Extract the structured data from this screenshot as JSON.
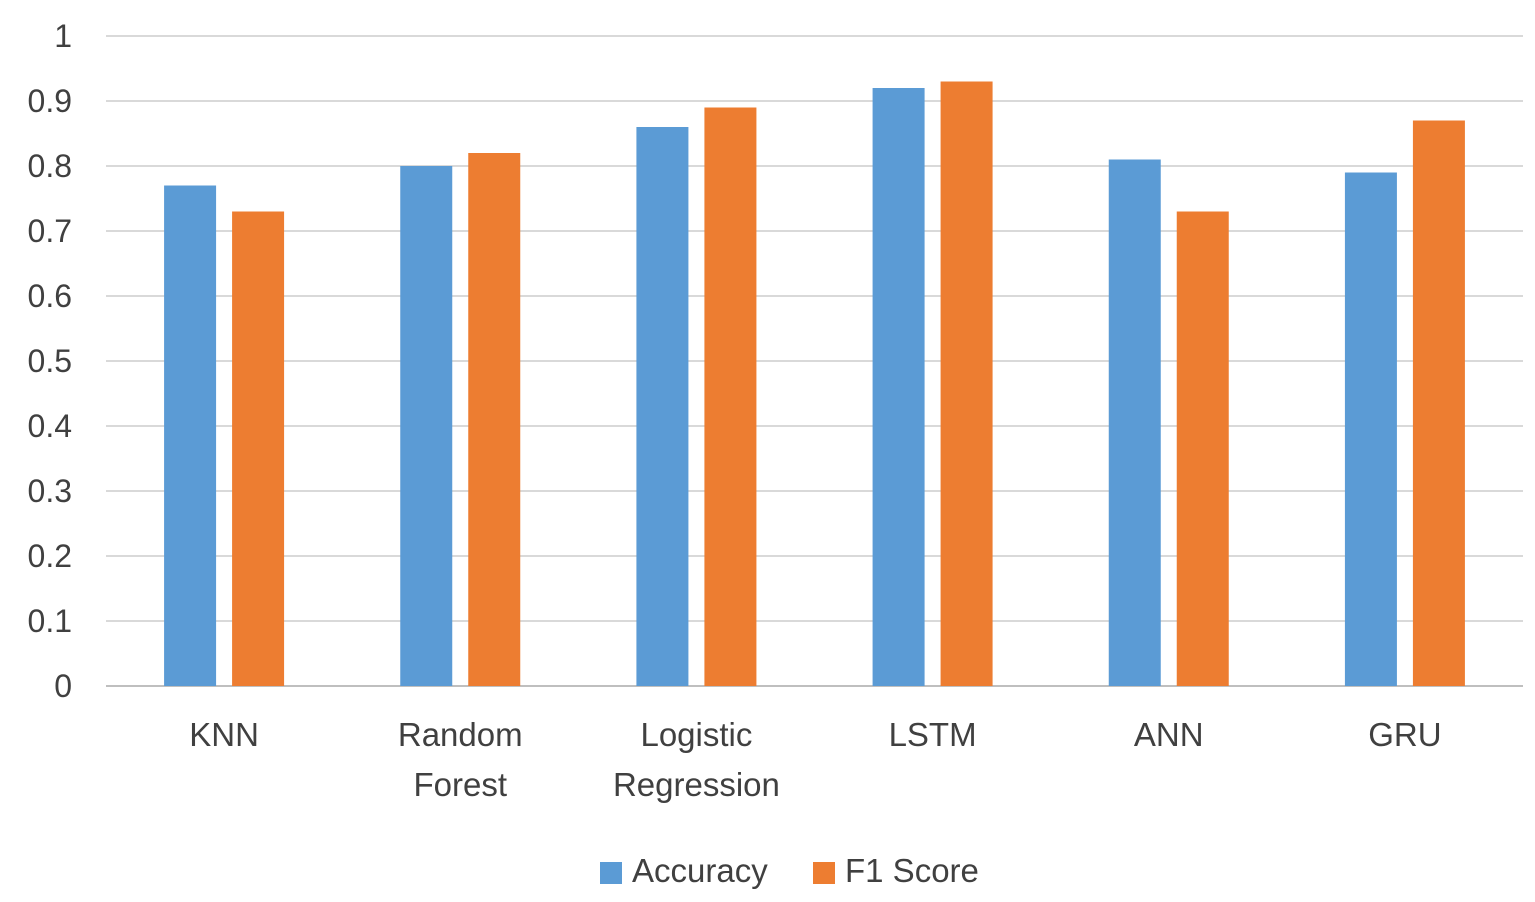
{
  "chart_data": {
    "type": "bar",
    "title": "",
    "xlabel": "",
    "ylabel": "",
    "ylim": [
      0,
      1
    ],
    "yticks": [
      "0",
      "0.1",
      "0.2",
      "0.3",
      "0.4",
      "0.5",
      "0.6",
      "0.7",
      "0.8",
      "0.9",
      "1"
    ],
    "categories": [
      [
        "KNN"
      ],
      [
        "Random",
        "Forest"
      ],
      [
        "Logistic",
        "Regression"
      ],
      [
        "LSTM"
      ],
      [
        "ANN"
      ],
      [
        "GRU"
      ]
    ],
    "series": [
      {
        "name": "Accuracy",
        "color": "#5b9bd5",
        "values": [
          0.77,
          0.8,
          0.86,
          0.92,
          0.81,
          0.79
        ]
      },
      {
        "name": "F1 Score",
        "color": "#ed7d31",
        "values": [
          0.73,
          0.82,
          0.89,
          0.93,
          0.73,
          0.87
        ]
      }
    ],
    "grid": true,
    "legend_position": "bottom"
  }
}
